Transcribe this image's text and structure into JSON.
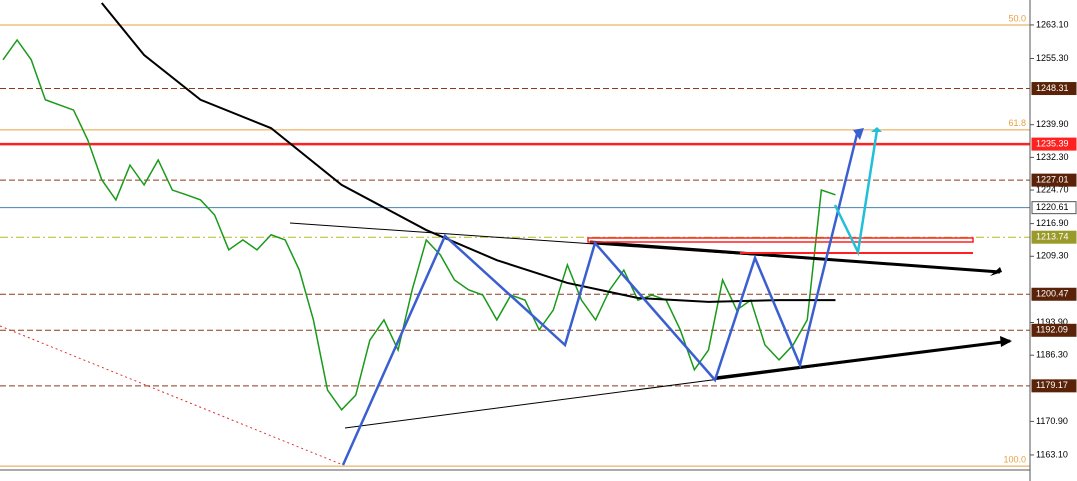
{
  "chart_data": {
    "type": "line",
    "ylim": [
      1159.6,
      1268.9
    ],
    "yticks": [
      {
        "value": 1263.1,
        "label": "1263.10"
      },
      {
        "value": 1255.3,
        "label": "1255.30"
      },
      {
        "value": 1239.9,
        "label": "1239.90"
      },
      {
        "value": 1232.3,
        "label": "1232.30"
      },
      {
        "value": 1224.7,
        "label": "1224.70"
      },
      {
        "value": 1216.9,
        "label": "1216.90"
      },
      {
        "value": 1209.3,
        "label": "1209.30"
      },
      {
        "value": 1193.9,
        "label": "1193.90"
      },
      {
        "value": 1186.3,
        "label": "1186.30"
      },
      {
        "value": 1170.9,
        "label": "1170.90"
      },
      {
        "value": 1163.1,
        "label": "1163.10"
      }
    ],
    "xlim": [
      0,
      73
    ],
    "series": [
      {
        "color": "#1a9a1a",
        "x": [
          0,
          1,
          2,
          3,
          4,
          5,
          6,
          7,
          8,
          9,
          10,
          11,
          12,
          13,
          14,
          15,
          16,
          17,
          18,
          19,
          20,
          21,
          22,
          23,
          24,
          25,
          26,
          27,
          28,
          29,
          30,
          31,
          32,
          33,
          34,
          35,
          36,
          37,
          38,
          39,
          40,
          41,
          42,
          43,
          44,
          45,
          46,
          47,
          48,
          49,
          50,
          51,
          52,
          53,
          54,
          55,
          56,
          57,
          58,
          59
        ],
        "values": [
          1255.0,
          1259.6,
          1255.0,
          1245.7,
          1244.5,
          1243.3,
          1236.4,
          1227.1,
          1222.4,
          1230.5,
          1225.9,
          1231.7,
          1224.7,
          1223.6,
          1222.4,
          1218.9,
          1210.8,
          1213.1,
          1210.8,
          1214.3,
          1213.1,
          1206.1,
          1194.5,
          1178.2,
          1173.6,
          1177.0,
          1189.8,
          1194.5,
          1187.5,
          1201.5,
          1213.1,
          1209.6,
          1203.8,
          1201.5,
          1200.3,
          1194.5,
          1200.3,
          1199.1,
          1192.2,
          1196.8,
          1207.3,
          1199.1,
          1194.5,
          1201.5,
          1206.1,
          1199.1,
          1200.3,
          1199.1,
          1192.2,
          1182.9,
          1187.5,
          1203.8,
          1196.8,
          1199.1,
          1188.7,
          1185.2,
          1188.7,
          1194.5,
          1224.7,
          1223.6
        ]
      },
      {
        "color": "#000000",
        "x": [
          7,
          10,
          14,
          19,
          24,
          30,
          35,
          40,
          45,
          50,
          55,
          59
        ],
        "values": [
          1268.2,
          1256.1,
          1245.7,
          1239.1,
          1225.9,
          1215.4,
          1208.4,
          1203.1,
          1199.6,
          1198.7,
          1199.1,
          1199.1
        ]
      }
    ],
    "levels": [
      {
        "value": 1248.31,
        "style": "dashed",
        "color": "#8b3a1a",
        "label_bg": "#5a2208"
      },
      {
        "value": 1235.39,
        "style": "solid",
        "color": "#ff2020",
        "label_bg": "#ff2020"
      },
      {
        "value": 1227.01,
        "style": "dashed",
        "color": "#8b3a1a",
        "label_bg": "#5a2208"
      },
      {
        "value": 1220.61,
        "style": "solid",
        "color": "#4682b4",
        "label_bg": "#ffffff"
      },
      {
        "value": 1213.74,
        "style": "dashdot",
        "color": "#b8b820",
        "label_bg": "#9a9a2a"
      },
      {
        "value": 1200.47,
        "style": "dashed",
        "color": "#8b3a1a",
        "label_bg": "#5a2208"
      },
      {
        "value": 1192.09,
        "style": "dashed",
        "color": "#8b3a1a",
        "label_bg": "#5a2208"
      },
      {
        "value": 1179.17,
        "style": "dashed",
        "color": "#8b3a1a",
        "label_bg": "#5a2208"
      }
    ],
    "fib_levels": [
      {
        "level": {
          "value": 50,
          "label": "50.0"
        },
        "price": 1263.1
      },
      {
        "level": 61.8,
        "price": 1238.7
      },
      {
        "level": {
          "value": 100,
          "label": "100.0"
        },
        "price": 1160.5
      }
    ],
    "fib_color": "#e8a040"
  }
}
